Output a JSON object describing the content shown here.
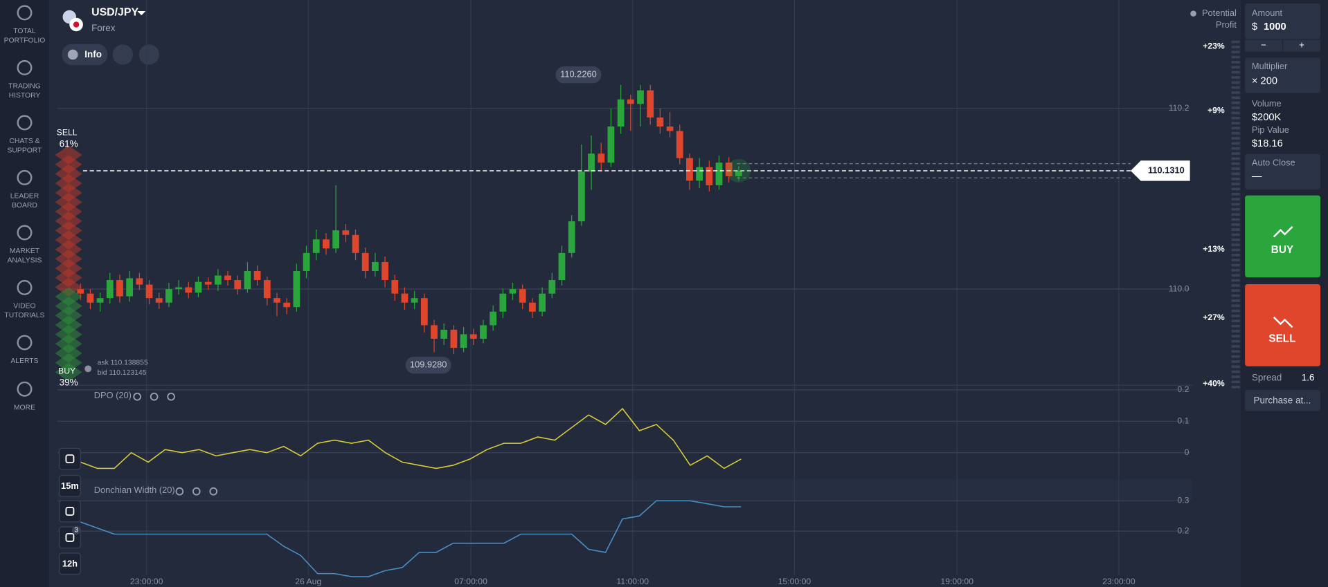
{
  "sidebar": [
    {
      "lines": [
        "TOTAL",
        "PORTFOLIO"
      ]
    },
    {
      "lines": [
        "TRADING",
        "HISTORY"
      ]
    },
    {
      "lines": [
        "CHATS &",
        "SUPPORT"
      ]
    },
    {
      "lines": [
        "LEADER",
        "BOARD"
      ]
    },
    {
      "lines": [
        "MARKET",
        "ANALYSIS"
      ]
    },
    {
      "lines": [
        "VIDEO",
        "TUTORIALS"
      ]
    },
    {
      "lines": [
        "ALERTS"
      ]
    },
    {
      "lines": [
        "MORE"
      ]
    }
  ],
  "header": {
    "pair": "USD/JPY",
    "category": "Forex",
    "info": "Info"
  },
  "sentiment": {
    "sell": "SELL",
    "sell_value": 61,
    "sell_label": "61%",
    "buy": "BUY",
    "buy_value": 39,
    "buy_label": "39%"
  },
  "tools": {
    "timeframe": "15m",
    "period": "12h",
    "badge": "3"
  },
  "profit_scale": [
    "+23%",
    "+9%",
    "+13%",
    "+27%",
    "+40%"
  ],
  "potential_profit": [
    "Potential",
    "Profit"
  ],
  "chart_data": [
    {
      "type": "candlestick",
      "x_labels": [
        "23:00:00",
        "26 Aug",
        "07:00:00",
        "11:00:00",
        "15:00:00",
        "19:00:00",
        "23:00:00"
      ],
      "open": [
        110.0,
        109.995,
        109.985,
        109.99,
        110.01,
        109.992,
        110.012,
        110.005,
        109.99,
        109.985,
        110.0,
        110.002,
        109.996,
        110.008,
        110.005,
        110.015,
        110.01,
        110.0,
        110.02,
        110.01,
        109.99,
        109.985,
        109.98,
        110.02,
        110.04,
        110.055,
        110.045,
        110.065,
        110.06,
        110.04,
        110.02,
        110.03,
        110.01,
        109.995,
        109.985,
        109.99,
        109.96,
        109.945,
        109.955,
        109.935,
        109.95,
        109.945,
        109.96,
        109.975,
        109.995,
        110.0,
        109.985,
        109.975,
        109.995,
        110.01,
        110.04,
        110.075,
        110.13,
        110.15,
        110.14,
        110.18,
        110.21,
        110.205,
        110.22,
        110.19,
        110.18,
        110.175,
        110.145,
        110.12,
        110.135,
        110.115,
        110.14,
        110.125
      ],
      "high": [
        110.006,
        110.0,
        109.996,
        110.018,
        110.016,
        110.02,
        110.018,
        110.01,
        109.996,
        110.007,
        110.01,
        110.008,
        110.014,
        110.013,
        110.022,
        110.02,
        110.015,
        110.03,
        110.026,
        110.014,
        109.996,
        109.99,
        110.028,
        110.048,
        110.066,
        110.062,
        110.115,
        110.072,
        110.066,
        110.046,
        110.04,
        110.036,
        110.016,
        110.002,
        109.998,
        109.995,
        109.966,
        109.962,
        109.96,
        109.958,
        109.956,
        109.966,
        109.982,
        110.001,
        110.007,
        110.005,
        109.99,
        110.002,
        110.018,
        110.048,
        110.082,
        110.16,
        110.17,
        110.162,
        110.2,
        110.226,
        110.215,
        110.226,
        110.226,
        110.2,
        110.196,
        110.182,
        110.15,
        110.145,
        110.142,
        110.148,
        110.146,
        110.136
      ],
      "low": [
        109.988,
        109.978,
        109.975,
        109.984,
        109.985,
        109.986,
        109.999,
        109.983,
        109.978,
        109.98,
        109.994,
        109.99,
        109.991,
        109.999,
        109.998,
        110.004,
        109.994,
        109.996,
        110.004,
        109.982,
        109.97,
        109.972,
        109.975,
        110.012,
        110.032,
        110.038,
        110.04,
        110.052,
        110.032,
        110.012,
        110.014,
        110.002,
        109.987,
        109.977,
        109.978,
        109.952,
        109.93,
        109.938,
        109.928,
        109.93,
        109.938,
        109.94,
        109.954,
        109.968,
        109.988,
        109.978,
        109.968,
        109.97,
        109.99,
        110.004,
        110.035,
        110.07,
        110.11,
        110.13,
        110.135,
        110.172,
        110.175,
        110.18,
        110.182,
        110.172,
        110.168,
        110.138,
        110.11,
        110.112,
        110.108,
        110.11,
        110.118,
        110.12
      ],
      "close": [
        109.995,
        109.985,
        109.99,
        110.01,
        109.992,
        110.012,
        110.005,
        109.99,
        109.985,
        110.0,
        110.002,
        109.996,
        110.008,
        110.005,
        110.015,
        110.01,
        110.0,
        110.02,
        110.01,
        109.99,
        109.985,
        109.98,
        110.02,
        110.04,
        110.055,
        110.045,
        110.065,
        110.06,
        110.04,
        110.02,
        110.03,
        110.01,
        109.995,
        109.985,
        109.99,
        109.96,
        109.945,
        109.955,
        109.935,
        109.95,
        109.945,
        109.96,
        109.975,
        109.995,
        110.0,
        109.985,
        109.975,
        109.995,
        110.01,
        110.04,
        110.075,
        110.13,
        110.15,
        110.14,
        110.18,
        110.21,
        110.205,
        110.22,
        110.19,
        110.18,
        110.175,
        110.145,
        110.12,
        110.135,
        110.115,
        110.14,
        110.125,
        110.131
      ],
      "up_color": "#2aa63c",
      "down_color": "#e0462b",
      "ylim": [
        109.894,
        110.32
      ],
      "yticks": [
        {
          "value": 110.2,
          "label": "110.2"
        },
        {
          "value": 110,
          "label": "110.0"
        }
      ],
      "max": {
        "value": 110.226,
        "label": "110.2260"
      },
      "min": {
        "value": 109.928,
        "label": "109.9280"
      },
      "current": {
        "value": 110.131,
        "label": "110.1310"
      },
      "ask": {
        "value": 110.138855,
        "label": "ask 110.138855"
      },
      "bid": {
        "value": 110.123145,
        "label": "bid 110.123145"
      }
    },
    {
      "type": "line",
      "title": "DPO (20)",
      "color": "#d8cc3a",
      "values": [
        -0.03,
        -0.05,
        -0.05,
        0.0,
        -0.03,
        0.01,
        0.0,
        0.01,
        -0.01,
        0.0,
        0.01,
        0.0,
        0.02,
        -0.01,
        0.03,
        0.04,
        0.03,
        0.04,
        0.0,
        -0.03,
        -0.04,
        -0.05,
        -0.04,
        -0.02,
        0.01,
        0.03,
        0.03,
        0.05,
        0.04,
        0.08,
        0.12,
        0.09,
        0.14,
        0.07,
        0.09,
        0.04,
        -0.04,
        -0.01,
        -0.05,
        -0.02
      ],
      "ylim": [
        -0.08,
        0.213
      ],
      "yticks": [
        0.2,
        0.1,
        0
      ]
    },
    {
      "type": "line",
      "title": "Donchian Width (20)",
      "color": "#4a8fc4",
      "values": [
        0.23,
        0.21,
        0.19,
        0.19,
        0.19,
        0.19,
        0.19,
        0.19,
        0.19,
        0.19,
        0.19,
        0.19,
        0.15,
        0.12,
        0.06,
        0.06,
        0.05,
        0.05,
        0.07,
        0.08,
        0.13,
        0.13,
        0.16,
        0.16,
        0.16,
        0.16,
        0.19,
        0.19,
        0.19,
        0.19,
        0.14,
        0.13,
        0.24,
        0.25,
        0.3,
        0.3,
        0.3,
        0.29,
        0.28,
        0.28
      ],
      "ylim": [
        0.055,
        0.367
      ],
      "yticks": [
        0.3,
        0.2
      ]
    }
  ],
  "panel": {
    "amount_label": "Amount",
    "currency": "$",
    "amount": "1000",
    "minus": "−",
    "plus": "+",
    "multiplier_label": "Multiplier",
    "multiplier": "× 200",
    "volume_label": "Volume",
    "volume": "$200K",
    "pip_label": "Pip Value",
    "pip": "$18.16",
    "auto_close_label": "Auto Close",
    "auto_close": "—",
    "buy": "BUY",
    "sell": "SELL",
    "spread_label": "Spread",
    "spread": "1.6",
    "purchase": "Purchase at..."
  }
}
